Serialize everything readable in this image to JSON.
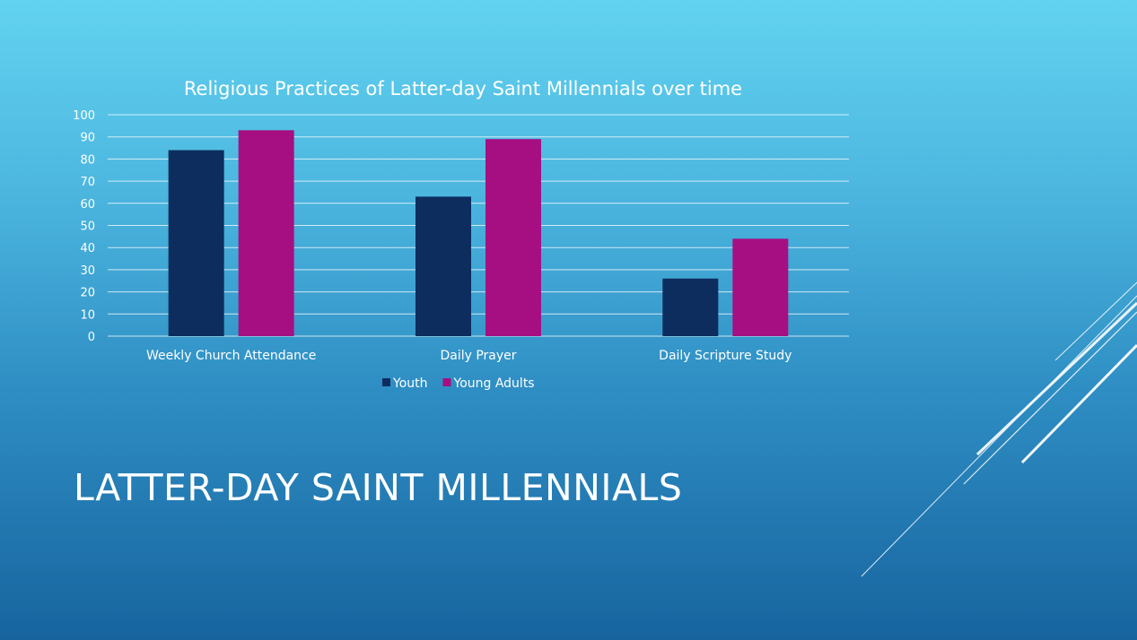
{
  "slide": {
    "title": "LATTER-DAY SAINT MILLENNIALS",
    "colors": {
      "background_top": "#62d3f0",
      "background_bottom": "#17649f",
      "text": "#ffffff"
    }
  },
  "chart_data": {
    "type": "bar",
    "title": "Religious Practices of Latter-day Saint Millennials over time",
    "categories": [
      "Weekly Church Attendance",
      "Daily Prayer",
      "Daily Scripture Study"
    ],
    "series": [
      {
        "name": "Youth",
        "values": [
          84,
          63,
          26
        ],
        "color": "#0c2d5e"
      },
      {
        "name": "Young Adults",
        "values": [
          93,
          89,
          44
        ],
        "color": "#a60f82"
      }
    ],
    "yticks": [
      "0",
      "10",
      "20",
      "30",
      "40",
      "50",
      "60",
      "70",
      "80",
      "90",
      "100"
    ],
    "ylim": [
      0,
      100
    ],
    "grid": true,
    "legend": "bottom"
  }
}
